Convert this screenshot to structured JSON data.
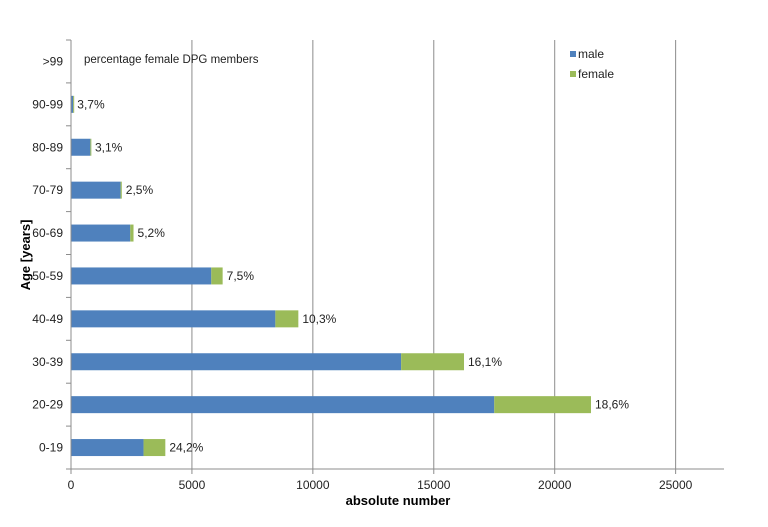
{
  "chart_data": {
    "type": "bar",
    "orientation": "horizontal",
    "stacked": true,
    "title": "",
    "annotation": "percentage female DPG members",
    "xlabel": "absolute number",
    "ylabel": "Age [years]",
    "xlim": [
      0,
      27000
    ],
    "xticks": [
      0,
      5000,
      10000,
      15000,
      20000,
      25000
    ],
    "grid": true,
    "legend_position": "top-right",
    "categories": [
      "0-19",
      "20-29",
      "30-39",
      "40-49",
      "50-59",
      "60-69",
      "70-79",
      "80-89",
      "90-99",
      ">99"
    ],
    "series": [
      {
        "name": "male",
        "color": "#4f81bd",
        "values": [
          3000,
          17500,
          13650,
          8450,
          5800,
          2450,
          2050,
          800,
          90,
          0
        ]
      },
      {
        "name": "female",
        "color": "#9bbb59",
        "values": [
          900,
          4000,
          2600,
          950,
          470,
          135,
          50,
          25,
          4,
          0
        ]
      }
    ],
    "data_labels": [
      "24,2%",
      "18,6%",
      "16,1%",
      "10,3%",
      "7,5%",
      "5,2%",
      "2,5%",
      "3,1%",
      "3,7%",
      ""
    ]
  }
}
